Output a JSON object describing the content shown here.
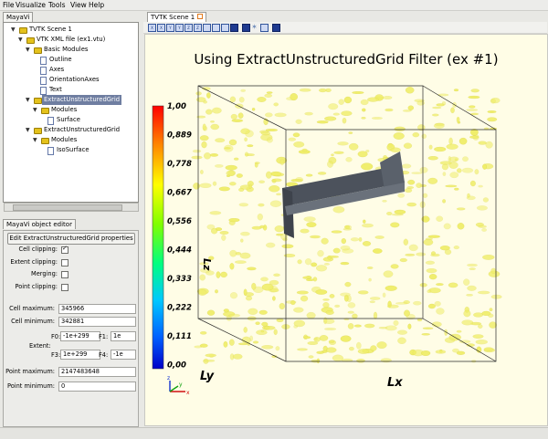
{
  "menu": [
    "File",
    "Visualize",
    "Tools",
    "View",
    "Help"
  ],
  "left_panel": {
    "tab": "MayaVi",
    "tree": [
      {
        "label": "TVTK Scene 1",
        "icon": "folder-icon"
      },
      {
        "label": "VTK XML file (ex1.vtu)",
        "icon": "folder-icon"
      },
      {
        "label": "Basic Modules",
        "icon": "folder-icon"
      },
      {
        "label": "Outline",
        "icon": "file-icon"
      },
      {
        "label": "Axes",
        "icon": "file-icon"
      },
      {
        "label": "OrientationAxes",
        "icon": "file-icon"
      },
      {
        "label": "Text",
        "icon": "file-icon"
      },
      {
        "label": "ExtractUnstructuredGrid",
        "icon": "folder-icon",
        "selected": true
      },
      {
        "label": "Modules",
        "icon": "folder-icon"
      },
      {
        "label": "Surface",
        "icon": "file-icon"
      },
      {
        "label": "ExtractUnstructuredGrid",
        "icon": "folder-icon"
      },
      {
        "label": "Modules",
        "icon": "folder-icon"
      },
      {
        "label": "IsoSurface",
        "icon": "file-icon"
      }
    ]
  },
  "editor": {
    "tab": "MayaVi object editor",
    "button": "Edit ExtractUnstructuredGrid properties",
    "cell_clipping": {
      "label": "Cell clipping:",
      "checked": true
    },
    "extent_clipping": {
      "label": "Extent clipping:",
      "checked": false
    },
    "merging": {
      "label": "Merging:",
      "checked": false
    },
    "point_clipping": {
      "label": "Point clipping:",
      "checked": false
    },
    "cell_maximum": {
      "label": "Cell maximum:",
      "value": "345966"
    },
    "cell_minimum": {
      "label": "Cell minimum:",
      "value": "342881"
    },
    "extent": {
      "label": "Extent:",
      "f0_label": "F0:",
      "f0": "-1e+299",
      "f1_label": "F1:",
      "f1": "1e",
      "f3_label": "F3:",
      "f3": "1e+299",
      "f4_label": "F4:",
      "f4": "-1e"
    },
    "point_maximum": {
      "label": "Point maximum:",
      "value": "2147483648"
    },
    "point_minimum": {
      "label": "Point minimum:",
      "value": "0"
    }
  },
  "scene": {
    "tab": "TVTK Scene 1",
    "title": "Using ExtractUnstructuredGrid Filter (ex #1)",
    "colorbar_title": "Lz",
    "colorbar_labels": [
      "1,00",
      "0,889",
      "0,778",
      "0,667",
      "0,556",
      "0,444",
      "0,333",
      "0,222",
      "0,111",
      "0,00"
    ],
    "axis_x_label": "Lx",
    "axis_y_label": "Ly",
    "orientation_labels": [
      "x",
      "y",
      "z"
    ],
    "colors": {
      "background": "#fffde6",
      "isosurface": "#f0ee6a",
      "slab": "#505760",
      "colormap": [
        "#ff0000",
        "#ff8000",
        "#ffff00",
        "#80ff00",
        "#00ff80",
        "#00c8ff",
        "#0060ff",
        "#0000c8"
      ]
    },
    "toolbar_icons": [
      "view-x-icon",
      "view-minus-x-icon",
      "view-y-icon",
      "view-minus-y-icon",
      "view-z-icon",
      "view-minus-z-icon",
      "isometric-view-icon",
      "parallel-projection-icon",
      "toggle-axes-icon",
      "full-screen-icon",
      "save-snapshot-icon",
      "interaction-icon",
      "configure-scene-icon",
      "save-icon"
    ]
  }
}
